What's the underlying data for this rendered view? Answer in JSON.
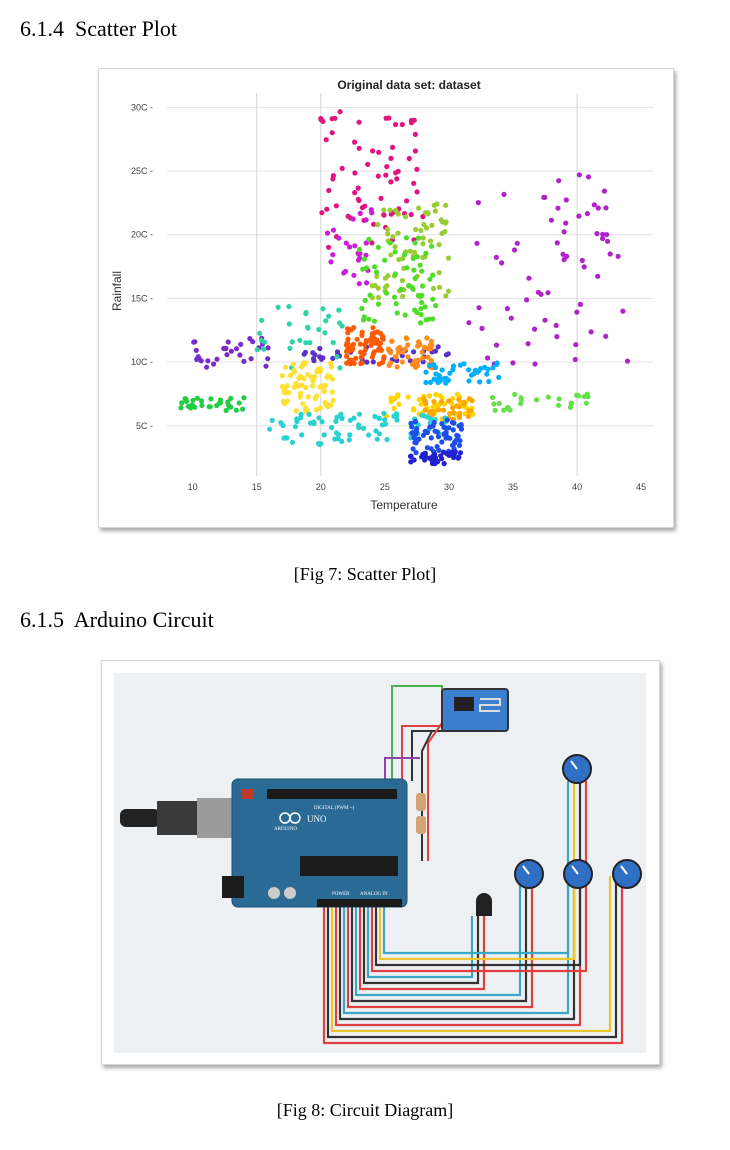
{
  "section_1": {
    "number": "6.1.4",
    "title": "Scatter Plot"
  },
  "figure_7": {
    "caption": "[Fig 7: Scatter Plot]"
  },
  "section_2": {
    "number": "6.1.5",
    "title": "Arduino Circuit"
  },
  "figure_8": {
    "caption": "[Fig 8: Circuit Diagram]"
  },
  "chart_data": {
    "type": "scatter",
    "title": "Original data set: dataset",
    "xlabel": "Temperature",
    "ylabel": "Rainfall",
    "xlim": [
      8,
      46
    ],
    "ylim": [
      20,
      305
    ],
    "x_ticks": [
      10,
      15,
      20,
      25,
      30,
      35,
      40,
      45
    ],
    "y_ticks": [
      50,
      100,
      150,
      200,
      250,
      300
    ],
    "y_tick_labels": [
      "5C",
      "10C",
      "15C",
      "20C",
      "25C",
      "30C"
    ],
    "x_tick_labels": [
      "10",
      "15",
      "20",
      "25",
      "30",
      "35",
      "40",
      "45"
    ],
    "grid": true,
    "legend": "none",
    "clusters": [
      {
        "color": "#e0157f",
        "x_range": [
          20,
          28
        ],
        "y_range": [
          190,
          300
        ],
        "count": 70
      },
      {
        "color": "#c91fd6",
        "x_range": [
          20,
          24
        ],
        "y_range": [
          160,
          220
        ],
        "count": 25
      },
      {
        "color": "#9acd32",
        "x_range": [
          24,
          30
        ],
        "y_range": [
          150,
          225
        ],
        "count": 70
      },
      {
        "color": "#4ddc28",
        "x_range": [
          23,
          29
        ],
        "y_range": [
          130,
          200
        ],
        "count": 60
      },
      {
        "color": "#b023c8",
        "x_range": [
          31,
          44
        ],
        "y_range": [
          95,
          250
        ],
        "count": 65
      },
      {
        "color": "#7a2cc8",
        "x_range": [
          10,
          16
        ],
        "y_range": [
          95,
          120
        ],
        "count": 30
      },
      {
        "color": "#5a32c8",
        "x_range": [
          18,
          30
        ],
        "y_range": [
          100,
          112
        ],
        "count": 40
      },
      {
        "color": "#2ed3a8",
        "x_range": [
          15,
          22
        ],
        "y_range": [
          95,
          145
        ],
        "count": 30
      },
      {
        "color": "#ff5a00",
        "x_range": [
          22,
          25
        ],
        "y_range": [
          98,
          128
        ],
        "count": 70
      },
      {
        "color": "#ff8c1a",
        "x_range": [
          25,
          29
        ],
        "y_range": [
          95,
          120
        ],
        "count": 45
      },
      {
        "color": "#ffe033",
        "x_range": [
          17,
          21
        ],
        "y_range": [
          60,
          100
        ],
        "count": 70
      },
      {
        "color": "#ffd400",
        "x_range": [
          25,
          32
        ],
        "y_range": [
          55,
          75
        ],
        "count": 50
      },
      {
        "color": "#ffa500",
        "x_range": [
          28,
          32
        ],
        "y_range": [
          55,
          72
        ],
        "count": 30
      },
      {
        "color": "#22cc44",
        "x_range": [
          9,
          14
        ],
        "y_range": [
          62,
          72
        ],
        "count": 30
      },
      {
        "color": "#66e04a",
        "x_range": [
          33,
          41
        ],
        "y_range": [
          62,
          75
        ],
        "count": 25
      },
      {
        "color": "#00b0ff",
        "x_range": [
          28,
          34
        ],
        "y_range": [
          82,
          100
        ],
        "count": 45
      },
      {
        "color": "#2ad1d1",
        "x_range": [
          16,
          30
        ],
        "y_range": [
          35,
          60
        ],
        "count": 80
      },
      {
        "color": "#1f4de8",
        "x_range": [
          27,
          31
        ],
        "y_range": [
          28,
          55
        ],
        "count": 60
      },
      {
        "color": "#2020d0",
        "x_range": [
          27,
          31
        ],
        "y_range": [
          20,
          30
        ],
        "count": 35
      }
    ]
  },
  "circuit": {
    "board": {
      "brand": "ARDUINO",
      "model": "UNO",
      "power_label": "POWER",
      "analog_label": "ANALOG IN",
      "digital_label": "DIGITAL (PWM ~)"
    },
    "components": [
      "usb-cable",
      "arduino-uno",
      "wifi-module",
      "resistor",
      "temperature-sensor",
      "potentiometer",
      "potentiometer",
      "potentiometer",
      "potentiometer"
    ],
    "wire_colors": {
      "red": "#e04040",
      "black": "#333333",
      "teal": "#3aa6c8",
      "yellow": "#e8c62c",
      "green": "#4caf50",
      "purple": "#8e44ad"
    }
  }
}
